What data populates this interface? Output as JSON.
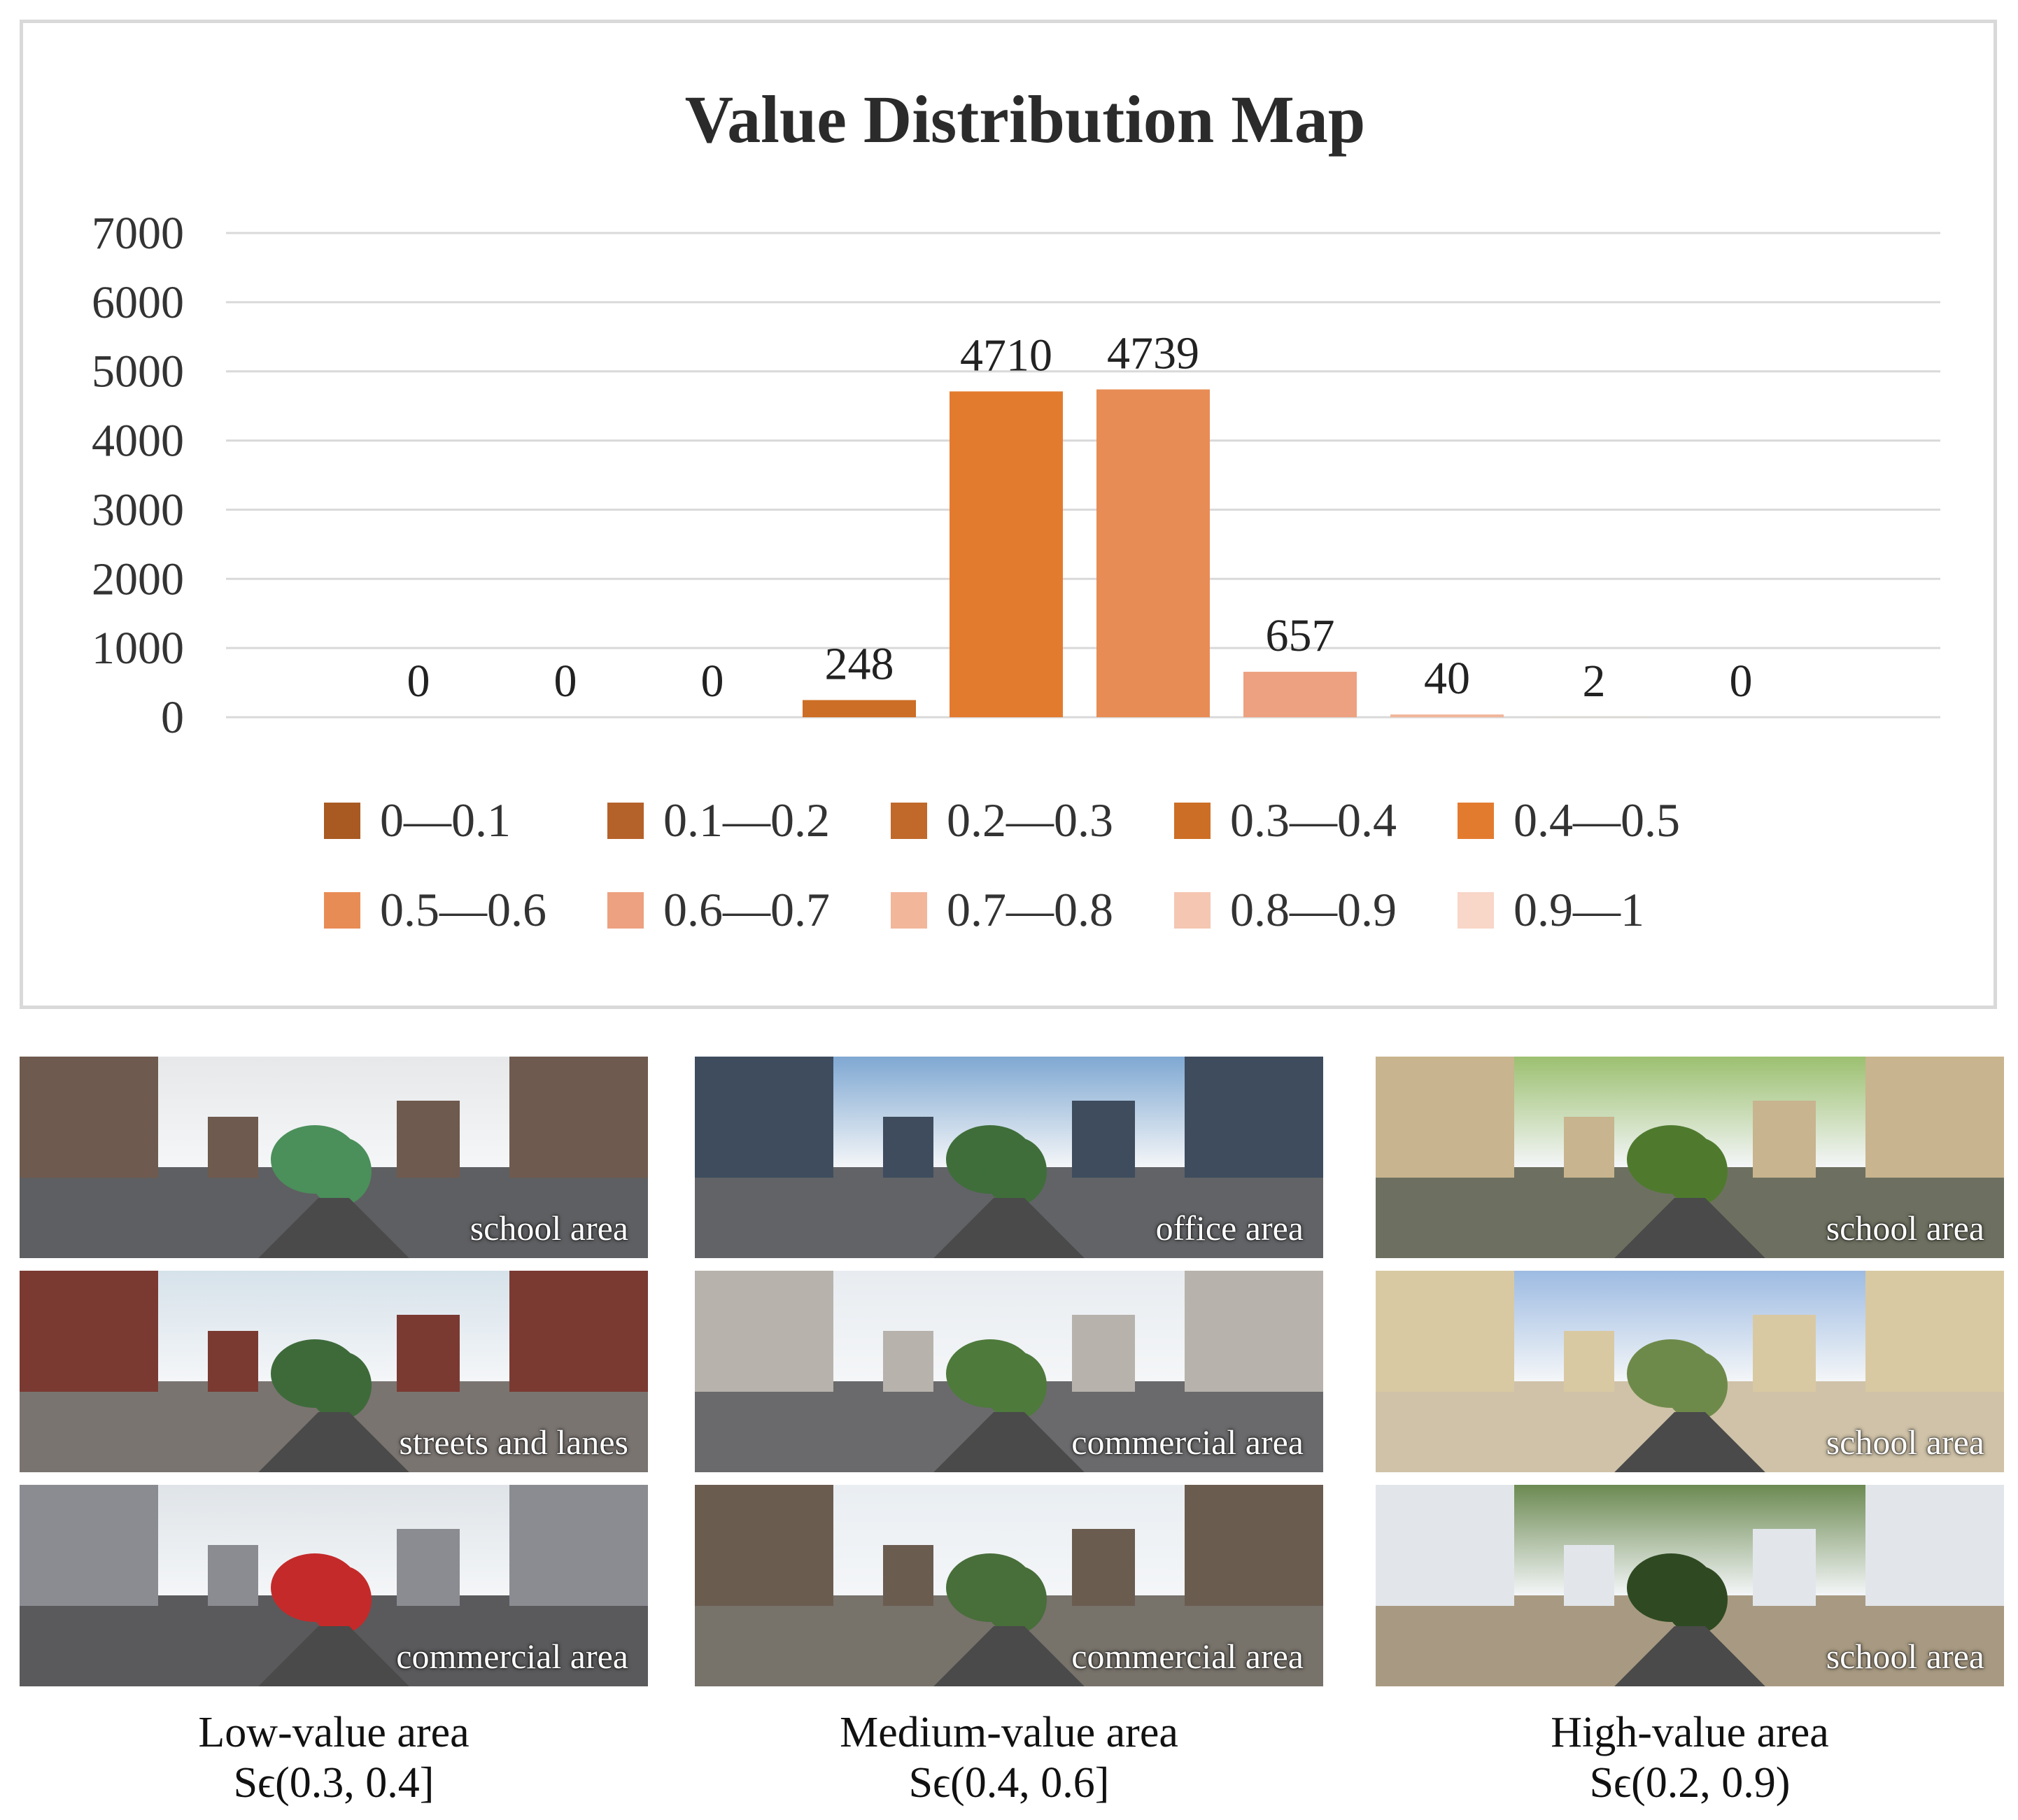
{
  "chart_data": {
    "type": "bar",
    "title": "Value Distribution Map",
    "categories": [
      "0—0.1",
      "0.1—0.2",
      "0.2—0.3",
      "0.3—0.4",
      "0.4—0.5",
      "0.5—0.6",
      "0.6—0.7",
      "0.7—0.8",
      "0.8—0.9",
      "0.9—1"
    ],
    "values": [
      0,
      0,
      0,
      248,
      4710,
      4739,
      657,
      40,
      2,
      0
    ],
    "data_labels": [
      "0",
      "0",
      "0",
      "248",
      "4710",
      "4739",
      "657",
      "40",
      "2",
      "0"
    ],
    "colors": [
      "#a85a22",
      "#b5612a",
      "#c0692a",
      "#cc6e25",
      "#e37b2f",
      "#e88c55",
      "#eda180",
      "#f2b69b",
      "#f5c6b2",
      "#f8d6c8"
    ],
    "ylim": [
      0,
      7000
    ],
    "yticks": [
      "0",
      "1000",
      "2000",
      "3000",
      "4000",
      "5000",
      "6000",
      "7000"
    ],
    "ytick_values": [
      0,
      1000,
      2000,
      3000,
      4000,
      5000,
      6000,
      7000
    ],
    "grid": true,
    "legend_position": "bottom",
    "xlabel": "",
    "ylabel": ""
  },
  "photo_groups": [
    {
      "label": "Low-value area",
      "range": "Sϵ(0.3, 0.4]",
      "photos": [
        {
          "caption": "school area",
          "sky": "#e6e8ea",
          "ground": "#5e5f62",
          "bldg": "#6e5a4e",
          "accent": "#4b8f5a"
        },
        {
          "caption": "streets and lanes",
          "sky": "#d6e2ea",
          "ground": "#7a7470",
          "bldg": "#7a3a32",
          "accent": "#3e6a3a"
        },
        {
          "caption": "commercial area",
          "sky": "#dfe4e8",
          "ground": "#5a5a5c",
          "bldg": "#8a8c92",
          "accent": "#c42a2a"
        }
      ]
    },
    {
      "label": "Medium-value area",
      "range": "Sϵ(0.4, 0.6]",
      "photos": [
        {
          "caption": "office area",
          "sky": "#7fa8d2",
          "ground": "#616366",
          "bldg": "#3e4c5e",
          "accent": "#3f6e3a"
        },
        {
          "caption": "commercial area",
          "sky": "#e8ecf0",
          "ground": "#6a6a6c",
          "bldg": "#b7b3ac",
          "accent": "#4e7a3c"
        },
        {
          "caption": "commercial area",
          "sky": "#e9eef2",
          "ground": "#77726a",
          "bldg": "#6b5c50",
          "accent": "#486e3a"
        }
      ]
    },
    {
      "label": "High-value area",
      "range": "Sϵ(0.2, 0.9)",
      "photos": [
        {
          "caption": "school area",
          "sky": "#9cc070",
          "ground": "#6d7060",
          "bldg": "#c8b48e",
          "accent": "#4f7a2e"
        },
        {
          "caption": "school area",
          "sky": "#9dbbe2",
          "ground": "#cfc2a8",
          "bldg": "#d9c9a2",
          "accent": "#6e8a4a"
        },
        {
          "caption": "school area",
          "sky": "#6c8a52",
          "ground": "#a89a82",
          "bldg": "#e2e6ea",
          "accent": "#2f4a22"
        }
      ]
    }
  ]
}
